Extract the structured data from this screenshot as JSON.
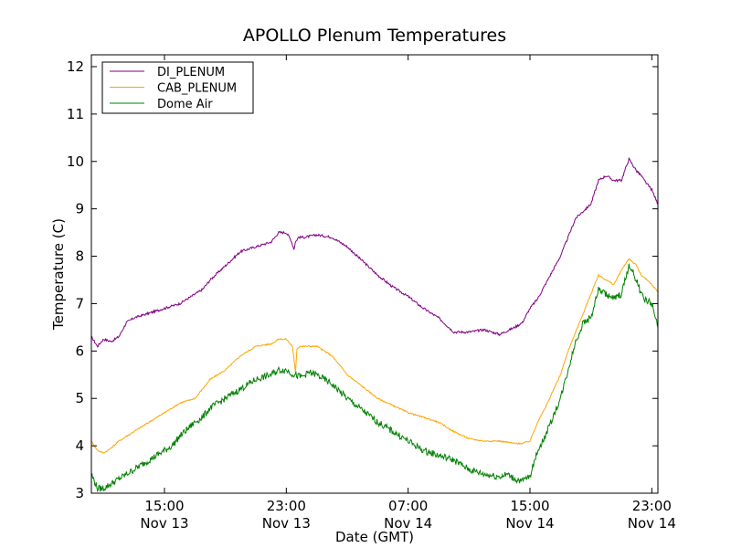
{
  "chart_data": {
    "type": "line",
    "title": "APOLLO Plenum Temperatures",
    "xlabel": "Date (GMT)",
    "ylabel": "Temperature (C)",
    "x_unit": "hours since Nov 13 00:00 GMT",
    "xlim": [
      10.2,
      47.4
    ],
    "ylim": [
      3,
      12.25
    ],
    "x_ticks": [
      {
        "x": 15,
        "line1": "15:00",
        "line2": "Nov 13"
      },
      {
        "x": 23,
        "line1": "23:00",
        "line2": "Nov 13"
      },
      {
        "x": 31,
        "line1": "07:00",
        "line2": "Nov 14"
      },
      {
        "x": 39,
        "line1": "15:00",
        "line2": "Nov 14"
      },
      {
        "x": 47,
        "line1": "23:00",
        "line2": "Nov 14"
      }
    ],
    "y_ticks": [
      3,
      4,
      5,
      6,
      7,
      8,
      9,
      10,
      11,
      12
    ],
    "legend_position": "top-left",
    "series": [
      {
        "name": "DI_PLENUM",
        "color": "#800080",
        "x": [
          10.2,
          10.6,
          11.0,
          11.5,
          12.0,
          12.5,
          13.0,
          14.0,
          15.0,
          16.0,
          16.5,
          17.0,
          17.5,
          18.0,
          19.0,
          20.0,
          21.0,
          22.0,
          22.5,
          23.0,
          23.3,
          23.5,
          23.6,
          23.8,
          24.2,
          25.0,
          26.0,
          27.0,
          28.0,
          29.0,
          30.0,
          31.0,
          32.0,
          33.0,
          34.0,
          35.0,
          36.0,
          37.0,
          38.0,
          38.5,
          39.0,
          39.5,
          40.0,
          41.0,
          42.0,
          43.0,
          43.5,
          44.0,
          44.5,
          45.0,
          45.5,
          46.0,
          46.3,
          46.5,
          47.0,
          47.4
        ],
        "y": [
          6.3,
          6.1,
          6.25,
          6.2,
          6.3,
          6.6,
          6.7,
          6.8,
          6.9,
          7.0,
          7.1,
          7.2,
          7.3,
          7.5,
          7.8,
          8.1,
          8.2,
          8.3,
          8.5,
          8.5,
          8.35,
          8.15,
          8.3,
          8.4,
          8.4,
          8.45,
          8.4,
          8.2,
          7.9,
          7.6,
          7.35,
          7.15,
          6.9,
          6.7,
          6.4,
          6.4,
          6.45,
          6.35,
          6.5,
          6.6,
          6.9,
          7.1,
          7.4,
          8.0,
          8.8,
          9.1,
          9.6,
          9.7,
          9.6,
          9.6,
          10.05,
          9.8,
          9.7,
          9.6,
          9.4,
          9.1
        ]
      },
      {
        "name": "CAB_PLENUM",
        "color": "#ffa500",
        "x": [
          10.2,
          10.6,
          11.0,
          11.5,
          12.0,
          13.0,
          14.0,
          15.0,
          16.0,
          17.0,
          17.5,
          18.0,
          19.0,
          20.0,
          21.0,
          22.0,
          22.5,
          23.0,
          23.4,
          23.6,
          23.7,
          23.9,
          24.2,
          25.0,
          26.0,
          27.0,
          28.0,
          29.0,
          30.0,
          31.0,
          32.0,
          33.0,
          34.0,
          35.0,
          36.0,
          37.0,
          38.0,
          38.5,
          39.0,
          39.5,
          40.0,
          41.0,
          41.5,
          42.0,
          42.5,
          43.0,
          43.5,
          44.0,
          44.5,
          45.0,
          45.5,
          46.0,
          46.3,
          46.5,
          47.0,
          47.4
        ],
        "y": [
          4.1,
          3.9,
          3.85,
          3.95,
          4.1,
          4.3,
          4.5,
          4.7,
          4.9,
          5.0,
          5.2,
          5.4,
          5.6,
          5.9,
          6.1,
          6.15,
          6.25,
          6.25,
          6.1,
          5.55,
          6.05,
          6.1,
          6.1,
          6.1,
          5.9,
          5.5,
          5.25,
          5.0,
          4.85,
          4.7,
          4.6,
          4.5,
          4.3,
          4.15,
          4.1,
          4.1,
          4.05,
          4.05,
          4.1,
          4.5,
          4.8,
          5.5,
          6.0,
          6.4,
          6.8,
          7.2,
          7.6,
          7.5,
          7.4,
          7.7,
          7.95,
          7.8,
          7.6,
          7.55,
          7.4,
          7.25
        ]
      },
      {
        "name": "Dome Air",
        "color": "#008000",
        "x": [
          10.2,
          10.6,
          11.0,
          11.5,
          12.0,
          13.0,
          14.0,
          15.0,
          15.5,
          16.0,
          17.0,
          17.5,
          18.0,
          19.0,
          20.0,
          21.0,
          22.0,
          22.5,
          23.0,
          23.5,
          24.0,
          24.5,
          25.0,
          26.0,
          27.0,
          28.0,
          29.0,
          30.0,
          31.0,
          32.0,
          33.0,
          34.0,
          35.0,
          36.0,
          37.0,
          37.5,
          38.0,
          38.5,
          38.7,
          39.0,
          39.5,
          40.0,
          41.0,
          41.5,
          42.0,
          42.5,
          43.0,
          43.5,
          44.0,
          44.5,
          45.0,
          45.5,
          46.0,
          46.3,
          46.5,
          47.0,
          47.4
        ],
        "y": [
          3.4,
          3.1,
          3.1,
          3.2,
          3.3,
          3.5,
          3.7,
          3.9,
          4.0,
          4.2,
          4.5,
          4.6,
          4.8,
          5.0,
          5.2,
          5.4,
          5.5,
          5.6,
          5.6,
          5.5,
          5.45,
          5.55,
          5.5,
          5.3,
          5.0,
          4.75,
          4.5,
          4.3,
          4.1,
          3.9,
          3.8,
          3.7,
          3.5,
          3.4,
          3.35,
          3.4,
          3.3,
          3.25,
          3.3,
          3.35,
          3.9,
          4.2,
          5.0,
          5.6,
          6.2,
          6.6,
          6.7,
          7.3,
          7.2,
          7.1,
          7.2,
          7.8,
          7.5,
          7.2,
          7.1,
          7.0,
          6.5
        ]
      }
    ]
  }
}
